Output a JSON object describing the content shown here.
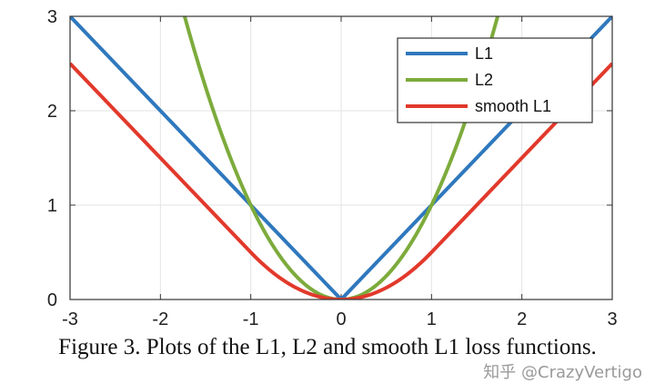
{
  "chart_data": {
    "type": "line",
    "title": "",
    "xlabel": "",
    "ylabel": "",
    "xlim": [
      -3,
      3
    ],
    "ylim": [
      0,
      3
    ],
    "xticks": [
      "-3",
      "-2",
      "-1",
      "0",
      "1",
      "2",
      "3"
    ],
    "yticks": [
      "0",
      "1",
      "2",
      "3"
    ],
    "grid": true,
    "legend_position": "top-right",
    "series": [
      {
        "name": "L1",
        "color": "#2f78bd",
        "function": "|x|"
      },
      {
        "name": "L2",
        "color": "#7dab3c",
        "function": "x^2"
      },
      {
        "name": "smooth L1",
        "color": "#e2392b",
        "function": "0.5x^2 if |x|<1 else |x|-0.5"
      }
    ]
  },
  "caption": "Figure 3. Plots of the L1, L2 and smooth L1 loss functions.",
  "watermark": "知乎 @CrazyVertigo"
}
